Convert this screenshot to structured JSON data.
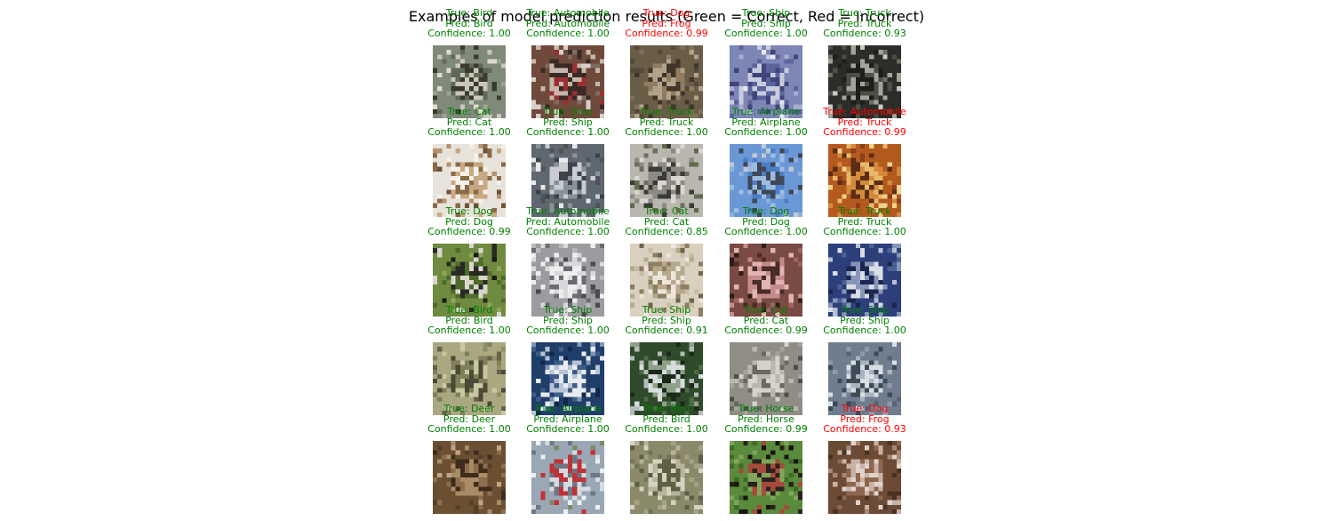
{
  "figure": {
    "title": "Examples of model prediction results (Green = Correct, Red = Incorrect)"
  },
  "colors": {
    "correct": "#008000",
    "incorrect": "#ff0000"
  },
  "examples": [
    {
      "true_label": "True: Bird",
      "pred_label": "Pred: Bird",
      "confidence_label": "Confidence: 1.00",
      "correct": true,
      "image": "bird-on-branch-photo",
      "palette": [
        "#7f8a7a",
        "#5f6b57",
        "#c9c7b9",
        "#3c3a2e",
        "#9aa48f",
        "#e0dccb"
      ]
    },
    {
      "true_label": "True: Automobile",
      "pred_label": "Pred: Automobile",
      "confidence_label": "Confidence: 1.00",
      "correct": true,
      "image": "red-car-photo",
      "palette": [
        "#6f4a3c",
        "#9c2f31",
        "#c7b7aa",
        "#3a2a26",
        "#d7cfc7",
        "#7c6b61"
      ]
    },
    {
      "true_label": "True: Dog",
      "pred_label": "Pred: Frog",
      "confidence_label": "Confidence: 0.99",
      "correct": false,
      "image": "dog-face-photo",
      "palette": [
        "#6a5d48",
        "#8f7c62",
        "#3f3528",
        "#b1a28a",
        "#57493a",
        "#7e7058"
      ]
    },
    {
      "true_label": "True: Ship",
      "pred_label": "Pred: Ship",
      "confidence_label": "Confidence: 1.00",
      "correct": true,
      "image": "ship-harbor-photo",
      "palette": [
        "#7d86b5",
        "#5a649b",
        "#c9ccdf",
        "#3f467a",
        "#a7aed0",
        "#e6e7ef"
      ]
    },
    {
      "true_label": "True: Truck",
      "pred_label": "Pred: Truck",
      "confidence_label": "Confidence: 0.93",
      "correct": true,
      "image": "dark-truck-photo",
      "palette": [
        "#2b2e28",
        "#4b4f45",
        "#a3a49c",
        "#1c1e19",
        "#6d7064",
        "#c9c9c2"
      ]
    },
    {
      "true_label": "True: Cat",
      "pred_label": "Pred: Cat",
      "confidence_label": "Confidence: 1.00",
      "correct": true,
      "image": "sitting-cat-photo",
      "palette": [
        "#e7e3da",
        "#c8a882",
        "#8b6a48",
        "#f4f1ea",
        "#b59170",
        "#6e5238"
      ]
    },
    {
      "true_label": "True: Ship",
      "pred_label": "Pred: Ship",
      "confidence_label": "Confidence: 1.00",
      "correct": true,
      "image": "white-ship-photo",
      "palette": [
        "#5f6770",
        "#c9ccd0",
        "#3d434a",
        "#8a9198",
        "#e8e9ea",
        "#4c535a"
      ]
    },
    {
      "true_label": "True: Truck",
      "pred_label": "Pred: Truck",
      "confidence_label": "Confidence: 1.00",
      "correct": true,
      "image": "dump-truck-photo",
      "palette": [
        "#b9b6ae",
        "#8c8a82",
        "#3a3a36",
        "#d8d6d0",
        "#5f6b4e",
        "#6e6c65"
      ]
    },
    {
      "true_label": "True: Airplane",
      "pred_label": "Pred: Airplane",
      "confidence_label": "Confidence: 1.00",
      "correct": true,
      "image": "airplane-sky-photo",
      "palette": [
        "#6a98d6",
        "#4b7fc7",
        "#9dbbe3",
        "#3f4856",
        "#8fb0dc",
        "#c2c8d2"
      ]
    },
    {
      "true_label": "True: Automobile",
      "pred_label": "Pred: Truck",
      "confidence_label": "Confidence: 0.99",
      "correct": false,
      "image": "car-showroom-photo",
      "palette": [
        "#b35a1f",
        "#d48a3c",
        "#5b2e14",
        "#e9b86a",
        "#8d3f18",
        "#f2d08d"
      ]
    },
    {
      "true_label": "True: Dog",
      "pred_label": "Pred: Dog",
      "confidence_label": "Confidence: 0.99",
      "correct": true,
      "image": "black-white-dog-photo",
      "palette": [
        "#6f8b3f",
        "#2a2a24",
        "#d9d6cf",
        "#4f6b2c",
        "#8fa65a",
        "#1b1b17"
      ]
    },
    {
      "true_label": "True: Automobile",
      "pred_label": "Pred: Automobile",
      "confidence_label": "Confidence: 1.00",
      "correct": true,
      "image": "white-car-photo",
      "palette": [
        "#9c9ca0",
        "#d9d9dc",
        "#6b6b70",
        "#eeeeef",
        "#4a4a4f",
        "#b8b8bc"
      ]
    },
    {
      "true_label": "True: Cat",
      "pred_label": "Pred: Cat",
      "confidence_label": "Confidence: 0.85",
      "correct": true,
      "image": "cat-shelves-photo",
      "palette": [
        "#d9d0bf",
        "#b7a98d",
        "#8e7e62",
        "#ece6da",
        "#6f644f",
        "#c9bca4"
      ]
    },
    {
      "true_label": "True: Dog",
      "pred_label": "Pred: Dog",
      "confidence_label": "Confidence: 1.00",
      "correct": true,
      "image": "pink-dog-photo",
      "palette": [
        "#7a4a44",
        "#c48d8a",
        "#4a2c29",
        "#e1b5b2",
        "#9c6560",
        "#2e1c1a"
      ]
    },
    {
      "true_label": "True: Truck",
      "pred_label": "Pred: Truck",
      "confidence_label": "Confidence: 1.00",
      "correct": true,
      "image": "blue-truck-photo",
      "palette": [
        "#2c3f7a",
        "#d9dde6",
        "#1b2750",
        "#8796b8",
        "#4d5f94",
        "#b7bfd2"
      ]
    },
    {
      "true_label": "True: Bird",
      "pred_label": "Pred: Bird",
      "confidence_label": "Confidence: 1.00",
      "correct": true,
      "image": "ostrich-photo",
      "palette": [
        "#a9a880",
        "#7f7f5a",
        "#4a4a36",
        "#c9c6a2",
        "#65634a",
        "#8f8e6b"
      ]
    },
    {
      "true_label": "True: Ship",
      "pred_label": "Pred: Ship",
      "confidence_label": "Confidence: 1.00",
      "correct": true,
      "image": "speedboat-photo",
      "palette": [
        "#1f3e6a",
        "#e8ecf1",
        "#3d5b86",
        "#b7c4d6",
        "#12284a",
        "#7f95b3"
      ]
    },
    {
      "true_label": "True: Ship",
      "pred_label": "Pred: Ship",
      "confidence_label": "Confidence: 0.91",
      "correct": true,
      "image": "sailboat-photo",
      "palette": [
        "#2f4a2a",
        "#d8dcdc",
        "#1a2a18",
        "#8ea08a",
        "#4d6b45",
        "#b4bcbb"
      ]
    },
    {
      "true_label": "True: Cat",
      "pred_label": "Pred: Cat",
      "confidence_label": "Confidence: 0.99",
      "correct": true,
      "image": "cat-face-photo",
      "palette": [
        "#8f8d86",
        "#b9b7ae",
        "#6a6862",
        "#d4d2c9",
        "#4f4d48",
        "#a4a29a"
      ]
    },
    {
      "true_label": "True: Ship",
      "pred_label": "Pred: Ship",
      "confidence_label": "Confidence: 1.00",
      "correct": true,
      "image": "boat-lake-photo",
      "palette": [
        "#6f7d8e",
        "#a9b4c1",
        "#3f4a57",
        "#d9dee3",
        "#56636f",
        "#8e9aa8"
      ]
    },
    {
      "true_label": "True: Deer",
      "pred_label": "Pred: Deer",
      "confidence_label": "Confidence: 1.00",
      "correct": true,
      "image": "elk-photo",
      "palette": [
        "#6b4f33",
        "#8d6e4c",
        "#3e2c1c",
        "#a98b66",
        "#57402a",
        "#c1a683"
      ]
    },
    {
      "true_label": "True: Airplane",
      "pred_label": "Pred: Airplane",
      "confidence_label": "Confidence: 1.00",
      "correct": true,
      "image": "airliner-photo",
      "palette": [
        "#9aa7b5",
        "#d6dbe0",
        "#6d7884",
        "#c0323a",
        "#eceff1",
        "#7f8a6a"
      ]
    },
    {
      "true_label": "True: Bird",
      "pred_label": "Pred: Bird",
      "confidence_label": "Confidence: 1.00",
      "correct": true,
      "image": "owl-photo",
      "palette": [
        "#8a8a6a",
        "#b8b39a",
        "#5f5f45",
        "#d6d2c0",
        "#73735a",
        "#a3a186"
      ]
    },
    {
      "true_label": "True: Horse",
      "pred_label": "Pred: Horse",
      "confidence_label": "Confidence: 0.99",
      "correct": true,
      "image": "black-horse-photo",
      "palette": [
        "#5a8a3c",
        "#2a231d",
        "#7fa65a",
        "#a64b3c",
        "#3e6b2a",
        "#1a1511"
      ]
    },
    {
      "true_label": "True: Dog",
      "pred_label": "Pred: Frog",
      "confidence_label": "Confidence: 0.93",
      "correct": false,
      "image": "brown-dog-photo",
      "palette": [
        "#6b4a36",
        "#c7b3a5",
        "#8e6650",
        "#e0d3ca",
        "#4a3022",
        "#a98672"
      ]
    }
  ]
}
